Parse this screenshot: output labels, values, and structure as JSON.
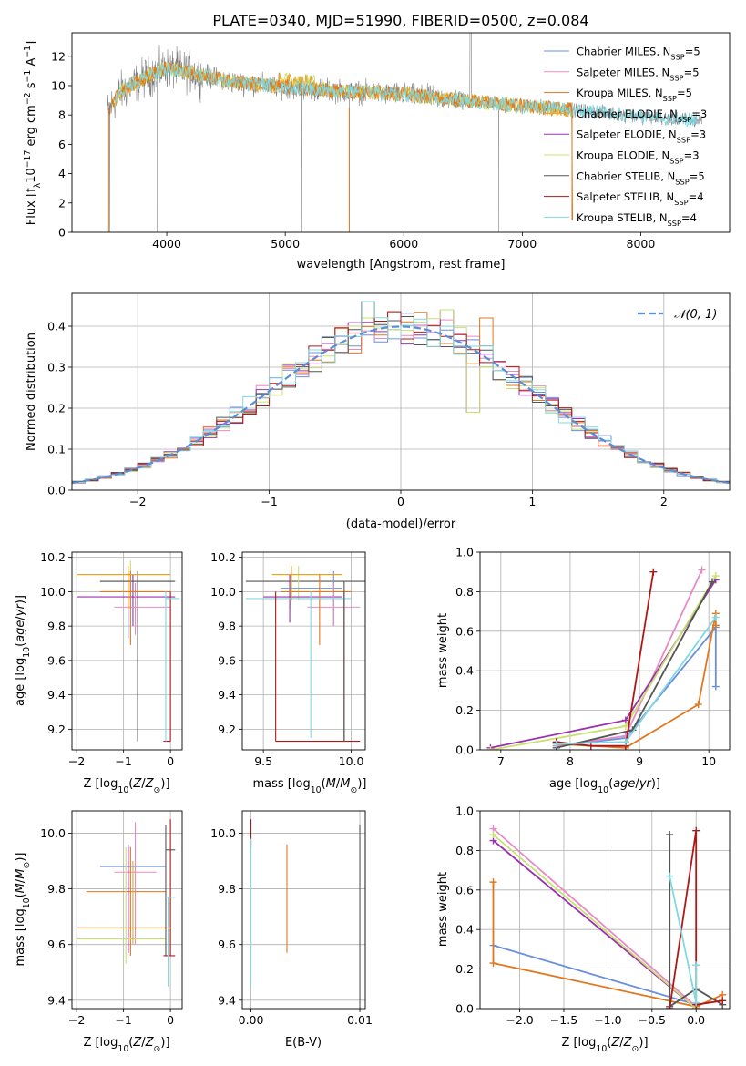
{
  "title": "PLATE=0340, MJD=51990, FIBERID=0500, z=0.084",
  "colors": {
    "Chabrier MILES": "#6a8fdc",
    "Salpeter MILES": "#e88bc4",
    "Kroupa MILES": "#e07820",
    "Chabrier ELODIE": "#f0a020",
    "Salpeter ELODIE": "#9b30b0",
    "Kroupa ELODIE": "#c8e070",
    "Chabrier STELIB": "#555555",
    "Salpeter STELIB": "#b01818",
    "Kroupa STELIB": "#80d8e0",
    "data": "#808080",
    "gauss": "#5b8dd9"
  },
  "chart_data": [
    {
      "type": "line",
      "title": "PLATE=0340, MJD=51990, FIBERID=0500, z=0.084",
      "xlabel": "wavelength [Angstrom, rest frame]",
      "ylabel": "Flux [fλ10⁻¹⁷ erg cm⁻² s⁻¹ A⁻¹]",
      "xlim": [
        3200,
        8750
      ],
      "ylim": [
        0,
        13.6
      ],
      "xticks": [
        "4000",
        "5000",
        "6000",
        "7000",
        "8000"
      ],
      "xtick_values": [
        4000,
        5000,
        6000,
        7000,
        8000
      ],
      "yticks": [
        "0",
        "2",
        "4",
        "6",
        "8",
        "10",
        "12"
      ],
      "ytick_values": [
        0,
        2,
        4,
        6,
        8,
        10,
        12
      ],
      "legend": {
        "placement": "upper right",
        "entries": [
          {
            "name": "Chabrier MILES",
            "nssp": "5"
          },
          {
            "name": "Salpeter MILES",
            "nssp": "5"
          },
          {
            "name": "Kroupa MILES",
            "nssp": "5"
          },
          {
            "name": "Chabrier ELODIE",
            "nssp": "3"
          },
          {
            "name": "Salpeter ELODIE",
            "nssp": "3"
          },
          {
            "name": "Kroupa ELODIE",
            "nssp": "3"
          },
          {
            "name": "Chabrier STELIB",
            "nssp": "5"
          },
          {
            "name": "Salpeter STELIB",
            "nssp": "4"
          },
          {
            "name": "Kroupa STELIB",
            "nssp": "4"
          }
        ]
      },
      "continuum": [
        [
          3500,
          8.2
        ],
        [
          3600,
          9.5
        ],
        [
          3800,
          10.5
        ],
        [
          4000,
          11.2
        ],
        [
          4200,
          10.9
        ],
        [
          4500,
          10.3
        ],
        [
          5000,
          9.9
        ],
        [
          5500,
          9.6
        ],
        [
          6000,
          9.4
        ],
        [
          6500,
          9.0
        ],
        [
          7000,
          8.6
        ],
        [
          7500,
          8.3
        ],
        [
          8000,
          7.9
        ],
        [
          8500,
          7.6
        ]
      ],
      "spikes": [
        [
          3920,
          0
        ],
        [
          5140,
          0
        ],
        [
          5540,
          0
        ],
        [
          6800,
          0
        ],
        [
          7420,
          0.8
        ],
        [
          3520,
          0
        ]
      ]
    },
    {
      "type": "histogram",
      "xlabel": "(data-model)/error",
      "ylabel": "Normed distribution",
      "xlim": [
        -2.5,
        2.5
      ],
      "ylim": [
        0,
        0.48
      ],
      "xticks": [
        "−2",
        "−1",
        "0",
        "1",
        "2"
      ],
      "xtick_values": [
        -2,
        -1,
        0,
        1,
        2
      ],
      "yticks": [
        "0.0",
        "0.1",
        "0.2",
        "0.3",
        "0.4"
      ],
      "ytick_values": [
        0,
        0.1,
        0.2,
        0.3,
        0.4
      ],
      "legend": "𝒩(0, 1)",
      "gauss": {
        "mu": 0,
        "sigma": 1
      }
    },
    {
      "type": "errorbar",
      "xlabel": "Z [log10(Z/Z⊙)]",
      "ylabel": "age  [log10(age/yr)]",
      "xlim": [
        -2.1,
        0.25
      ],
      "ylim": [
        9.08,
        10.23
      ],
      "xticks": [
        "−2",
        "−1",
        "0"
      ],
      "xtick_values": [
        -2,
        -1,
        0
      ],
      "yticks": [
        "9.2",
        "9.4",
        "9.6",
        "9.8",
        "10.0",
        "10.2"
      ],
      "ytick_values": [
        9.2,
        9.4,
        9.6,
        9.8,
        10.0,
        10.2
      ]
    },
    {
      "type": "errorbar",
      "xlabel": "mass [log10(M/M⊙)]",
      "xlim": [
        9.38,
        10.08
      ],
      "ylim": [
        9.08,
        10.23
      ],
      "xticks": [
        "9.5",
        "10.0"
      ],
      "xtick_values": [
        9.5,
        10.0
      ],
      "yticks": [
        "9.2",
        "9.4",
        "9.6",
        "9.8",
        "10.0",
        "10.2"
      ],
      "ytick_values": [
        9.2,
        9.4,
        9.6,
        9.8,
        10.0,
        10.2
      ]
    },
    {
      "type": "line",
      "xlabel": "age  [log10(age/yr)]",
      "ylabel": "mass weight",
      "xlim": [
        6.7,
        10.3
      ],
      "ylim": [
        0,
        1
      ],
      "xticks": [
        "7",
        "8",
        "9",
        "10"
      ],
      "xtick_values": [
        7,
        8,
        9,
        10
      ],
      "yticks": [
        "0.0",
        "0.2",
        "0.4",
        "0.6",
        "0.8",
        "1.0"
      ],
      "ytick_values": [
        0,
        0.2,
        0.4,
        0.6,
        0.8,
        1.0
      ],
      "series": [
        {
          "key": "Chabrier MILES",
          "x": [
            7.8,
            8.8,
            10.1,
            10.1
          ],
          "y": [
            0.02,
            0.06,
            0.62,
            0.32
          ]
        },
        {
          "key": "Salpeter MILES",
          "x": [
            7.8,
            8.8,
            9.9
          ],
          "y": [
            0.02,
            0.07,
            0.91
          ]
        },
        {
          "key": "Kroupa MILES",
          "x": [
            7.8,
            8.8,
            9.85,
            10.1,
            10.1
          ],
          "y": [
            0.03,
            0.01,
            0.23,
            0.69,
            0.63
          ]
        },
        {
          "key": "Salpeter ELODIE",
          "x": [
            6.85,
            8.8,
            10.1
          ],
          "y": [
            0.01,
            0.15,
            0.86
          ]
        },
        {
          "key": "Kroupa ELODIE",
          "x": [
            6.85,
            8.8,
            10.1
          ],
          "y": [
            0.0,
            0.12,
            0.88
          ]
        },
        {
          "key": "Chabrier STELIB",
          "x": [
            7.8,
            8.9,
            10.05
          ],
          "y": [
            0.01,
            0.1,
            0.85
          ]
        },
        {
          "key": "Salpeter STELIB",
          "x": [
            7.8,
            8.3,
            8.8,
            9.2
          ],
          "y": [
            0.04,
            0.02,
            0.02,
            0.9
          ]
        },
        {
          "key": "Kroupa STELIB",
          "x": [
            7.8,
            8.8,
            10.1
          ],
          "y": [
            0.03,
            0.04,
            0.67
          ]
        }
      ]
    },
    {
      "type": "errorbar",
      "xlabel": "Z [log10(Z/Z⊙)]",
      "ylabel": "mass [log10(M/M⊙)]",
      "xlim": [
        -2.1,
        0.25
      ],
      "ylim": [
        9.37,
        10.08
      ],
      "xticks": [
        "−2",
        "−1",
        "0"
      ],
      "xtick_values": [
        -2,
        -1,
        0
      ],
      "yticks": [
        "9.4",
        "9.6",
        "9.8",
        "10.0"
      ],
      "ytick_values": [
        9.4,
        9.6,
        9.8,
        10.0
      ]
    },
    {
      "type": "errorbar",
      "xlabel": "E(B-V)",
      "xlim": [
        -0.0008,
        0.0105
      ],
      "ylim": [
        9.37,
        10.08
      ],
      "xticks": [
        "0.00",
        "0.01"
      ],
      "xtick_values": [
        0,
        0.01
      ],
      "yticks": [
        "9.4",
        "9.6",
        "9.8",
        "10.0"
      ],
      "ytick_values": [
        9.4,
        9.6,
        9.8,
        10.0
      ]
    },
    {
      "type": "line",
      "xlabel": "Z [log10(Z/Z⊙)]",
      "ylabel": "mass weight",
      "xlim": [
        -2.45,
        0.38
      ],
      "ylim": [
        0,
        1
      ],
      "xticks": [
        "−2.0",
        "−1.5",
        "−1.0",
        "−0.5",
        "0.0"
      ],
      "xtick_values": [
        -2,
        -1.5,
        -1,
        -0.5,
        0
      ],
      "yticks": [
        "0.0",
        "0.2",
        "0.4",
        "0.6",
        "0.8",
        "1.0"
      ],
      "ytick_values": [
        0,
        0.2,
        0.4,
        0.6,
        0.8,
        1.0
      ],
      "series": [
        {
          "key": "Chabrier MILES",
          "x": [
            -2.3,
            0.0,
            0.0
          ],
          "y": [
            0.32,
            0.02,
            0.0
          ]
        },
        {
          "key": "Salpeter MILES",
          "x": [
            -2.3,
            0.0
          ],
          "y": [
            0.91,
            0.01
          ]
        },
        {
          "key": "Kroupa MILES",
          "x": [
            -2.3,
            -2.3,
            0.0,
            0.3
          ],
          "y": [
            0.64,
            0.23,
            0.01,
            0.07
          ]
        },
        {
          "key": "Salpeter ELODIE",
          "x": [
            -2.3,
            0.0
          ],
          "y": [
            0.85,
            0.0
          ]
        },
        {
          "key": "Kroupa ELODIE",
          "x": [
            -2.3,
            0.0
          ],
          "y": [
            0.88,
            0.0
          ]
        },
        {
          "key": "Chabrier STELIB",
          "x": [
            -0.3,
            -0.3,
            0.0,
            0.3
          ],
          "y": [
            0.88,
            0.01,
            0.1,
            0.02
          ]
        },
        {
          "key": "Salpeter STELIB",
          "x": [
            -0.3,
            0.0,
            0.0,
            0.3
          ],
          "y": [
            0.0,
            0.9,
            0.02,
            0.04
          ]
        },
        {
          "key": "Kroupa STELIB",
          "x": [
            -0.3,
            0.0,
            0.0
          ],
          "y": [
            0.67,
            0.03,
            0.22
          ]
        }
      ]
    }
  ]
}
